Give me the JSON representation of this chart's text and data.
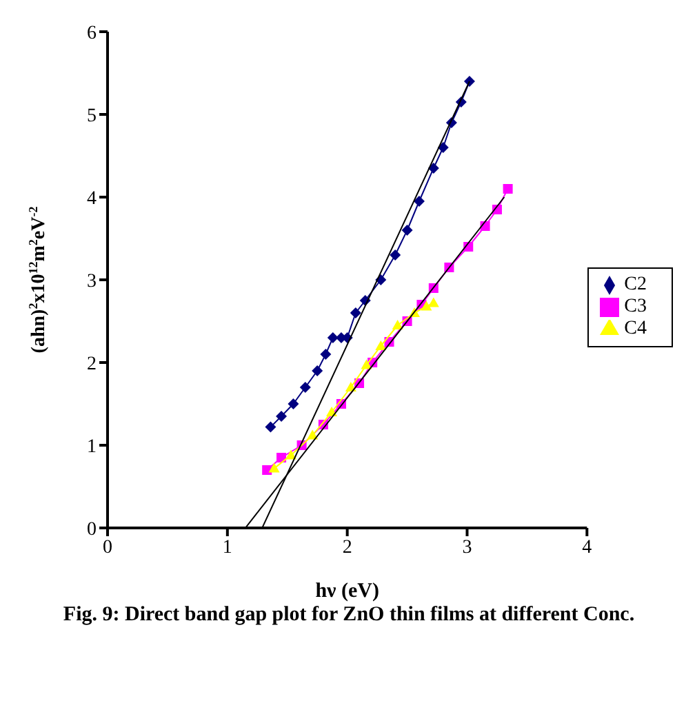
{
  "chart_data": {
    "type": "line",
    "xlabel": "hν (eV)",
    "ylabel": "(ahn)$^{2}$x10$^{12}$m$^{2}$eV$^{-2}$",
    "annotations": [
      "Fig. 9: Direct band gap plot for ZnO thin films at different Conc."
    ],
    "xlim": [
      0,
      4
    ],
    "xticks": [
      0,
      1,
      2,
      3,
      4
    ],
    "ylim": [
      0,
      6
    ],
    "yticks": [
      0,
      1,
      2,
      3,
      4,
      5,
      6
    ],
    "grid": false,
    "legend": "right",
    "series": [
      {
        "name": "C2",
        "color": "#000080",
        "marker": "diamond",
        "x": [
          1.36,
          1.45,
          1.55,
          1.65,
          1.75,
          1.82,
          1.88,
          1.95,
          2.0,
          2.07,
          2.15,
          2.28,
          2.4,
          2.5,
          2.6,
          2.72,
          2.8,
          2.87,
          2.95,
          3.02
        ],
        "values": [
          1.22,
          1.35,
          1.5,
          1.7,
          1.9,
          2.1,
          2.3,
          2.3,
          2.3,
          2.6,
          2.75,
          3.0,
          3.3,
          3.6,
          3.95,
          4.35,
          4.6,
          4.9,
          5.15,
          5.4
        ]
      },
      {
        "name": "C3",
        "color": "#ff00ff",
        "marker": "square",
        "x": [
          1.33,
          1.45,
          1.62,
          1.8,
          1.95,
          2.1,
          2.21,
          2.35,
          2.5,
          2.62,
          2.72,
          2.85,
          3.01,
          3.15,
          3.25,
          3.34
        ],
        "values": [
          0.7,
          0.85,
          1.0,
          1.25,
          1.5,
          1.75,
          2.0,
          2.25,
          2.5,
          2.7,
          2.9,
          3.15,
          3.4,
          3.65,
          3.85,
          4.1
        ]
      },
      {
        "name": "C4",
        "color": "#ffff00",
        "marker": "triangle",
        "x": [
          1.39,
          1.53,
          1.71,
          1.87,
          2.03,
          2.16,
          2.28,
          2.42,
          2.56,
          2.66,
          2.72
        ],
        "values": [
          0.72,
          0.88,
          1.12,
          1.4,
          1.7,
          1.97,
          2.2,
          2.45,
          2.6,
          2.68,
          2.72
        ]
      },
      {
        "type": "line",
        "color": "#000000",
        "marker": "none",
        "x": [
          1.29,
          3.02
        ],
        "values": [
          0,
          5.4
        ]
      },
      {
        "type": "line",
        "color": "#000000",
        "marker": "none",
        "x": [
          1.15,
          3.31
        ],
        "values": [
          0,
          4.0
        ]
      }
    ]
  }
}
